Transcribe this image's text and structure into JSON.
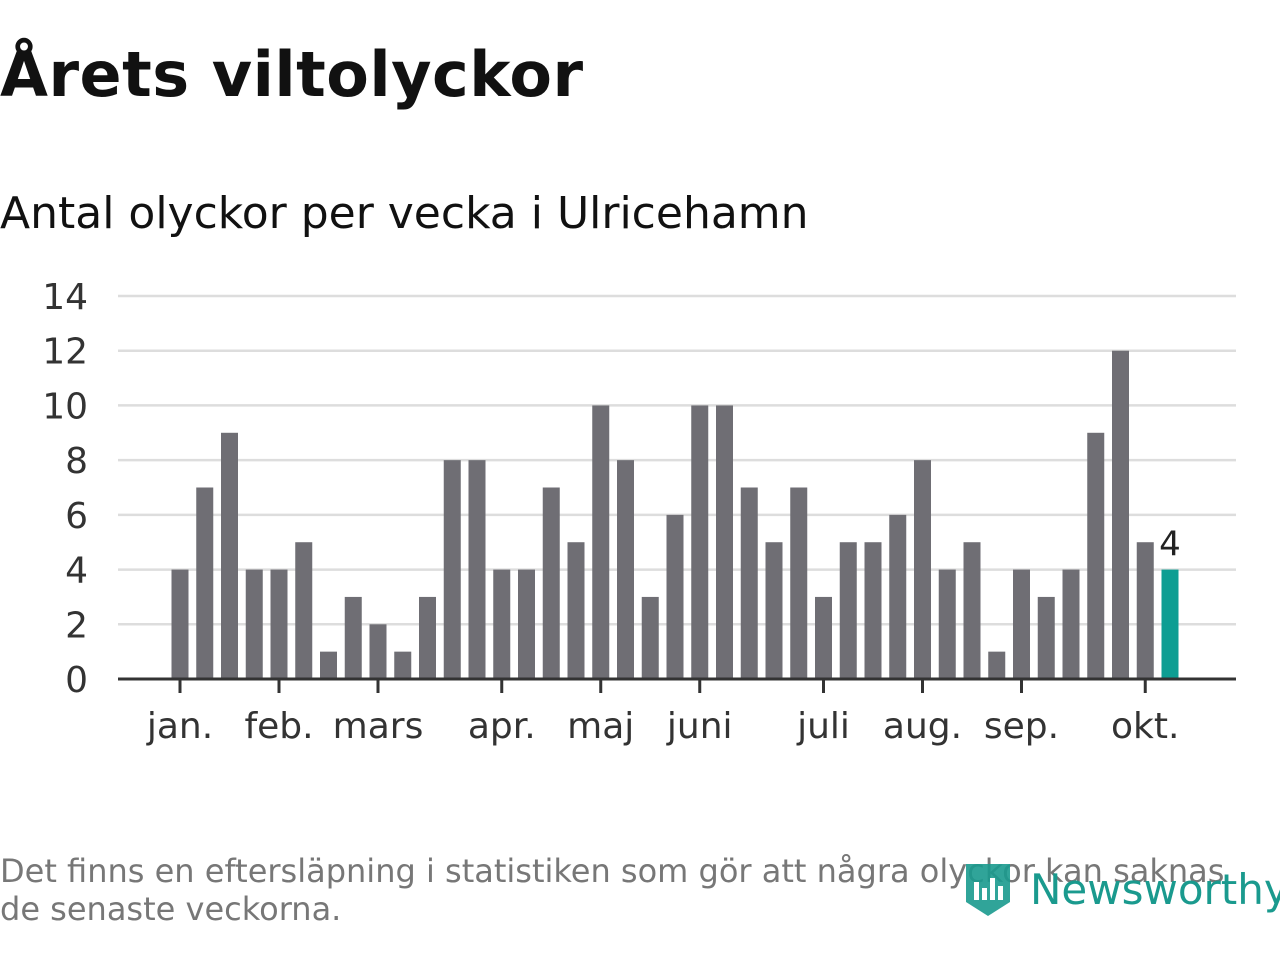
{
  "header": {
    "title": "Årets viltolyckor",
    "subtitle": "Antal olyckor per vecka i Ulricehamn"
  },
  "footer": {
    "note": "Det finns en eftersläpning i statistiken som gör att några olyckor kan saknas de senaste veckorna.",
    "logo_text": "Newsworthy",
    "logo_icon": "newsworthy-logo-icon"
  },
  "colors": {
    "bar": "#6f6e74",
    "highlight": "#0e9e93",
    "grid": "#dddddd",
    "axis": "#333333",
    "brand": "#1a9a8e"
  },
  "chart_data": {
    "type": "bar",
    "ylim": [
      0,
      14
    ],
    "yticks": [
      0,
      2,
      4,
      6,
      8,
      10,
      12,
      14
    ],
    "grid": true,
    "values": [
      4,
      7,
      9,
      4,
      4,
      5,
      1,
      3,
      2,
      1,
      3,
      8,
      8,
      4,
      4,
      7,
      5,
      10,
      8,
      3,
      6,
      10,
      10,
      7,
      5,
      7,
      3,
      5,
      5,
      6,
      8,
      4,
      5,
      1,
      4,
      3,
      4,
      9,
      12,
      5,
      4
    ],
    "highlight_index": 40,
    "data_label": {
      "index": 40,
      "text": "4"
    },
    "month_labels": [
      {
        "label": "jan.",
        "week_index": 0
      },
      {
        "label": "feb.",
        "week_index": 4
      },
      {
        "label": "mars",
        "week_index": 8
      },
      {
        "label": "apr.",
        "week_index": 13
      },
      {
        "label": "maj",
        "week_index": 17
      },
      {
        "label": "juni",
        "week_index": 21
      },
      {
        "label": "juli",
        "week_index": 26
      },
      {
        "label": "aug.",
        "week_index": 30
      },
      {
        "label": "sep.",
        "week_index": 34
      },
      {
        "label": "okt.",
        "week_index": 39
      }
    ]
  }
}
